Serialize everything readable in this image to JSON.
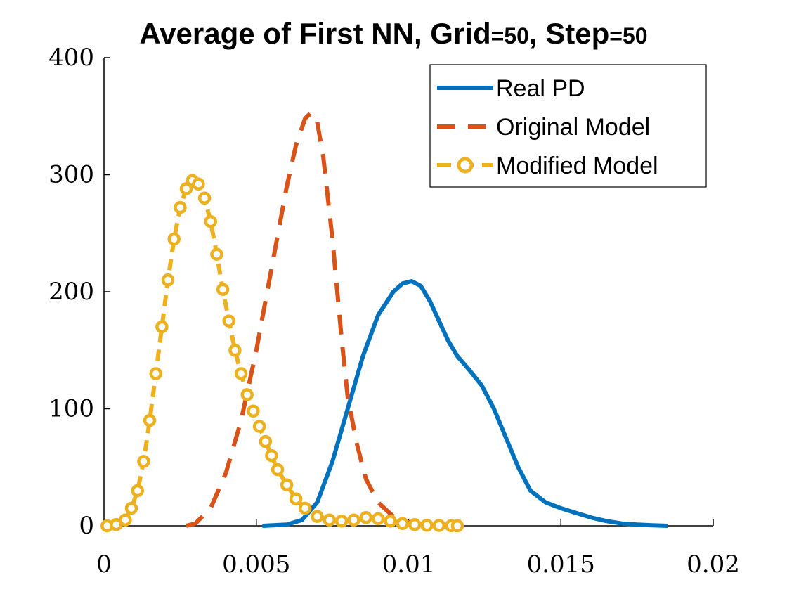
{
  "chart_data": {
    "type": "line",
    "title_parts": [
      "Average of First NN, Grid",
      "=50",
      ", Step",
      "=50"
    ],
    "xlabel": "",
    "ylabel": "",
    "xlim": [
      0,
      0.02
    ],
    "ylim": [
      0,
      400
    ],
    "x_ticks": [
      0,
      0.005,
      0.01,
      0.015,
      0.02
    ],
    "x_tick_labels": [
      "0",
      "0.005",
      "0.01",
      "0.015",
      "0.02"
    ],
    "y_ticks": [
      0,
      100,
      200,
      300,
      400
    ],
    "y_tick_labels": [
      "0",
      "100",
      "200",
      "300",
      "400"
    ],
    "grid": false,
    "legend_position": "top-right",
    "series": [
      {
        "name": "Real PD",
        "style": "solid",
        "color": "#0072BD",
        "x": [
          0.0052,
          0.006,
          0.0065,
          0.007,
          0.0075,
          0.008,
          0.0085,
          0.009,
          0.0095,
          0.0098,
          0.0101,
          0.0104,
          0.0107,
          0.011,
          0.0113,
          0.0116,
          0.012,
          0.0124,
          0.0128,
          0.0132,
          0.0136,
          0.014,
          0.0145,
          0.015,
          0.0155,
          0.016,
          0.0165,
          0.017,
          0.0175,
          0.018,
          0.0185
        ],
        "y": [
          0,
          1,
          5,
          20,
          55,
          100,
          145,
          180,
          200,
          207,
          209,
          205,
          192,
          175,
          158,
          145,
          133,
          120,
          100,
          75,
          50,
          30,
          20,
          15,
          11,
          7,
          4,
          2,
          1,
          0.5,
          0
        ]
      },
      {
        "name": "Original Model",
        "style": "dashed",
        "color": "#D95319",
        "x": [
          0.0027,
          0.003,
          0.0035,
          0.004,
          0.0045,
          0.005,
          0.0055,
          0.006,
          0.0063,
          0.0066,
          0.0068,
          0.007,
          0.0072,
          0.0075,
          0.0078,
          0.008,
          0.0083,
          0.0086,
          0.009,
          0.0095,
          0.01,
          0.0105,
          0.011
        ],
        "y": [
          0,
          2,
          15,
          45,
          90,
          150,
          220,
          290,
          325,
          348,
          353,
          345,
          315,
          245,
          160,
          110,
          70,
          40,
          20,
          8,
          3,
          1,
          0
        ]
      },
      {
        "name": "Modified Model",
        "style": "dash-circle",
        "color": "#EDB120",
        "x": [
          0.0001,
          0.0004,
          0.0007,
          0.0009,
          0.0011,
          0.0013,
          0.0015,
          0.0017,
          0.0019,
          0.0021,
          0.0023,
          0.0025,
          0.0027,
          0.0029,
          0.0031,
          0.0033,
          0.0035,
          0.0037,
          0.0039,
          0.0041,
          0.0043,
          0.0045,
          0.0047,
          0.0049,
          0.0051,
          0.0053,
          0.0055,
          0.0057,
          0.006,
          0.0063,
          0.0066,
          0.007,
          0.0074,
          0.0078,
          0.0082,
          0.0086,
          0.009,
          0.0094,
          0.0098,
          0.0102,
          0.0106,
          0.011,
          0.0114,
          0.0116
        ],
        "y": [
          0,
          1,
          5,
          15,
          30,
          55,
          90,
          130,
          170,
          210,
          245,
          272,
          288,
          295,
          292,
          280,
          260,
          232,
          202,
          175,
          150,
          130,
          112,
          98,
          85,
          72,
          60,
          48,
          35,
          23,
          15,
          8,
          5,
          4,
          5,
          7,
          6,
          4,
          2,
          1,
          0.5,
          0.3,
          0.1,
          0
        ]
      }
    ]
  }
}
